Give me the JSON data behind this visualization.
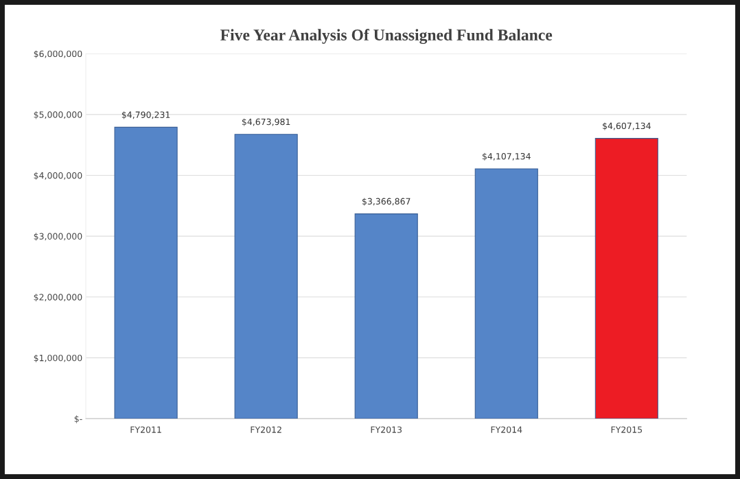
{
  "chart_data": {
    "type": "bar",
    "title": "Five Year Analysis Of Unassigned Fund Balance",
    "categories": [
      "FY2011",
      "FY2012",
      "FY2013",
      "FY2014",
      "FY2015"
    ],
    "values": [
      4790231,
      4673981,
      3366867,
      4107134,
      4607134
    ],
    "colors": [
      "#5585c8",
      "#5585c8",
      "#5585c8",
      "#5585c8",
      "#ed1c24"
    ],
    "value_labels": [
      "$4,790,231",
      "$4,673,981",
      "$3,366,867",
      "$4,107,134",
      "$4,607,134"
    ],
    "ylim": [
      0,
      6000000
    ],
    "yticks": [
      {
        "value": 0,
        "label": "$-"
      },
      {
        "value": 1000000,
        "label": "$1,000,000"
      },
      {
        "value": 2000000,
        "label": "$2,000,000"
      },
      {
        "value": 3000000,
        "label": "$3,000,000"
      },
      {
        "value": 4000000,
        "label": "$4,000,000"
      },
      {
        "value": 5000000,
        "label": "$5,000,000"
      },
      {
        "value": 6000000,
        "label": "$6,000,000"
      }
    ],
    "grid": "y",
    "legend": false
  }
}
